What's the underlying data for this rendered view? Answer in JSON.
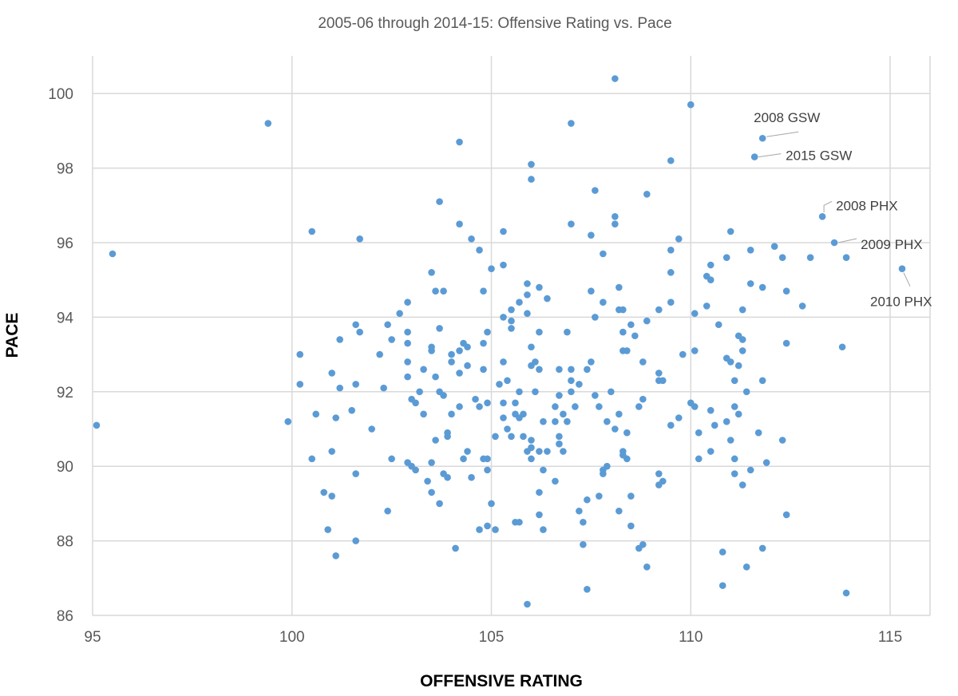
{
  "chart_data": {
    "type": "scatter",
    "title": "2005-06 through 2014-15: Offensive Rating vs. Pace",
    "xlabel": "OFFENSIVE RATING",
    "ylabel": "PACE",
    "xlim": [
      95,
      116
    ],
    "ylim": [
      86,
      101
    ],
    "xticks": [
      "95",
      "100",
      "105",
      "110",
      "115"
    ],
    "yticks": [
      "86",
      "88",
      "90",
      "92",
      "94",
      "96",
      "98",
      "100"
    ],
    "grid": true,
    "color": "#5B9BD5",
    "annotations": [
      {
        "label": "2008 GSW",
        "x": 111.8,
        "y": 98.8
      },
      {
        "label": "2015 GSW",
        "x": 111.6,
        "y": 98.3
      },
      {
        "label": "2008 PHX",
        "x": 113.3,
        "y": 96.7
      },
      {
        "label": "2009 PHX",
        "x": 113.6,
        "y": 96.0
      },
      {
        "label": "2010 PHX",
        "x": 115.3,
        "y": 95.3
      }
    ],
    "points": [
      [
        95.1,
        91.1
      ],
      [
        95.5,
        95.7
      ],
      [
        99.4,
        99.2
      ],
      [
        99.9,
        91.2
      ],
      [
        100.2,
        93.0
      ],
      [
        100.2,
        92.2
      ],
      [
        100.5,
        96.3
      ],
      [
        100.5,
        90.2
      ],
      [
        100.6,
        91.4
      ],
      [
        100.8,
        89.3
      ],
      [
        100.9,
        88.3
      ],
      [
        101.0,
        92.5
      ],
      [
        101.0,
        90.4
      ],
      [
        101.0,
        89.2
      ],
      [
        101.1,
        87.6
      ],
      [
        101.1,
        91.3
      ],
      [
        101.2,
        92.1
      ],
      [
        101.2,
        93.4
      ],
      [
        101.7,
        96.1
      ],
      [
        101.6,
        93.8
      ],
      [
        101.7,
        93.6
      ],
      [
        101.6,
        92.2
      ],
      [
        101.5,
        91.5
      ],
      [
        101.6,
        89.8
      ],
      [
        101.6,
        88.0
      ],
      [
        102.0,
        91.0
      ],
      [
        102.2,
        93.0
      ],
      [
        102.3,
        92.1
      ],
      [
        102.4,
        93.8
      ],
      [
        102.5,
        93.4
      ],
      [
        102.5,
        90.2
      ],
      [
        102.4,
        88.8
      ],
      [
        102.7,
        94.1
      ],
      [
        102.9,
        94.4
      ],
      [
        102.9,
        93.6
      ],
      [
        102.9,
        93.3
      ],
      [
        102.9,
        92.8
      ],
      [
        102.9,
        92.4
      ],
      [
        102.9,
        90.1
      ],
      [
        103.0,
        91.8
      ],
      [
        103.0,
        90.0
      ],
      [
        103.1,
        89.9
      ],
      [
        103.1,
        91.7
      ],
      [
        103.2,
        92.0
      ],
      [
        103.3,
        91.4
      ],
      [
        103.3,
        92.6
      ],
      [
        103.4,
        89.6
      ],
      [
        103.5,
        93.2
      ],
      [
        103.5,
        93.1
      ],
      [
        103.5,
        95.2
      ],
      [
        103.5,
        90.1
      ],
      [
        103.5,
        89.3
      ],
      [
        103.6,
        94.7
      ],
      [
        103.6,
        92.4
      ],
      [
        103.6,
        90.7
      ],
      [
        103.7,
        97.1
      ],
      [
        103.7,
        93.7
      ],
      [
        103.7,
        92.0
      ],
      [
        103.7,
        89.0
      ],
      [
        103.8,
        94.7
      ],
      [
        103.8,
        91.9
      ],
      [
        103.8,
        89.8
      ],
      [
        103.9,
        90.9
      ],
      [
        103.9,
        89.7
      ],
      [
        103.9,
        90.8
      ],
      [
        104.0,
        91.4
      ],
      [
        104.0,
        93.0
      ],
      [
        104.0,
        92.8
      ],
      [
        104.1,
        87.8
      ],
      [
        104.2,
        98.7
      ],
      [
        104.2,
        96.5
      ],
      [
        104.2,
        93.1
      ],
      [
        104.2,
        92.5
      ],
      [
        104.2,
        91.6
      ],
      [
        104.3,
        93.3
      ],
      [
        104.3,
        90.2
      ],
      [
        104.4,
        93.2
      ],
      [
        104.4,
        92.7
      ],
      [
        104.4,
        90.4
      ],
      [
        104.5,
        96.1
      ],
      [
        104.5,
        89.7
      ],
      [
        104.6,
        91.8
      ],
      [
        104.7,
        95.8
      ],
      [
        104.7,
        91.6
      ],
      [
        104.7,
        88.3
      ],
      [
        104.8,
        94.7
      ],
      [
        104.8,
        93.3
      ],
      [
        104.8,
        92.6
      ],
      [
        104.8,
        90.2
      ],
      [
        104.9,
        93.6
      ],
      [
        104.9,
        91.7
      ],
      [
        104.9,
        90.2
      ],
      [
        104.9,
        89.9
      ],
      [
        104.9,
        88.4
      ],
      [
        105.0,
        95.3
      ],
      [
        105.0,
        89.0
      ],
      [
        105.1,
        88.3
      ],
      [
        105.1,
        90.8
      ],
      [
        105.2,
        92.2
      ],
      [
        105.3,
        96.3
      ],
      [
        105.3,
        95.4
      ],
      [
        105.3,
        94.0
      ],
      [
        105.3,
        92.8
      ],
      [
        105.3,
        91.7
      ],
      [
        105.3,
        91.3
      ],
      [
        105.4,
        92.3
      ],
      [
        105.4,
        91.0
      ],
      [
        105.5,
        94.2
      ],
      [
        105.5,
        93.7
      ],
      [
        105.5,
        93.9
      ],
      [
        105.5,
        90.8
      ],
      [
        105.6,
        91.7
      ],
      [
        105.6,
        91.4
      ],
      [
        105.6,
        88.5
      ],
      [
        105.7,
        94.4
      ],
      [
        105.7,
        92.0
      ],
      [
        105.7,
        91.3
      ],
      [
        105.7,
        88.5
      ],
      [
        105.8,
        91.4
      ],
      [
        105.8,
        90.8
      ],
      [
        105.9,
        94.9
      ],
      [
        105.9,
        94.6
      ],
      [
        105.9,
        94.1
      ],
      [
        105.9,
        90.4
      ],
      [
        105.9,
        86.3
      ],
      [
        106.0,
        98.1
      ],
      [
        106.0,
        97.7
      ],
      [
        106.0,
        93.2
      ],
      [
        106.0,
        92.7
      ],
      [
        106.0,
        90.7
      ],
      [
        106.0,
        90.5
      ],
      [
        106.0,
        90.2
      ],
      [
        106.1,
        92.8
      ],
      [
        106.1,
        92.0
      ],
      [
        106.2,
        94.8
      ],
      [
        106.2,
        93.6
      ],
      [
        106.2,
        92.6
      ],
      [
        106.2,
        90.4
      ],
      [
        106.2,
        89.3
      ],
      [
        106.2,
        88.7
      ],
      [
        106.3,
        91.2
      ],
      [
        106.3,
        89.9
      ],
      [
        106.3,
        88.3
      ],
      [
        106.4,
        94.5
      ],
      [
        106.4,
        90.4
      ],
      [
        106.6,
        89.6
      ],
      [
        106.6,
        91.6
      ],
      [
        106.6,
        91.2
      ],
      [
        106.7,
        92.6
      ],
      [
        106.7,
        91.9
      ],
      [
        106.7,
        90.8
      ],
      [
        106.7,
        90.6
      ],
      [
        106.8,
        91.4
      ],
      [
        106.8,
        90.4
      ],
      [
        106.9,
        93.6
      ],
      [
        106.9,
        91.2
      ],
      [
        107.0,
        99.2
      ],
      [
        107.0,
        96.5
      ],
      [
        107.0,
        92.6
      ],
      [
        107.0,
        92.3
      ],
      [
        107.0,
        92.0
      ],
      [
        107.1,
        91.6
      ],
      [
        107.2,
        92.2
      ],
      [
        107.2,
        88.8
      ],
      [
        107.3,
        88.5
      ],
      [
        107.3,
        87.9
      ],
      [
        107.4,
        92.6
      ],
      [
        107.4,
        89.1
      ],
      [
        107.4,
        86.7
      ],
      [
        107.5,
        96.2
      ],
      [
        107.5,
        94.7
      ],
      [
        107.5,
        92.8
      ],
      [
        107.6,
        97.4
      ],
      [
        107.6,
        94.0
      ],
      [
        107.6,
        91.9
      ],
      [
        107.7,
        91.6
      ],
      [
        107.7,
        89.2
      ],
      [
        107.8,
        95.7
      ],
      [
        107.8,
        94.4
      ],
      [
        107.8,
        89.9
      ],
      [
        107.8,
        89.8
      ],
      [
        107.9,
        91.2
      ],
      [
        107.9,
        90.0
      ],
      [
        108.0,
        92.0
      ],
      [
        108.1,
        100.4
      ],
      [
        108.1,
        96.7
      ],
      [
        108.1,
        96.5
      ],
      [
        108.1,
        91.0
      ],
      [
        108.2,
        94.8
      ],
      [
        108.2,
        91.4
      ],
      [
        108.2,
        88.8
      ],
      [
        108.2,
        94.2
      ],
      [
        108.3,
        94.2
      ],
      [
        108.3,
        93.6
      ],
      [
        108.3,
        93.1
      ],
      [
        108.3,
        90.4
      ],
      [
        108.3,
        90.3
      ],
      [
        108.4,
        93.1
      ],
      [
        108.4,
        90.9
      ],
      [
        108.4,
        90.2
      ],
      [
        108.5,
        93.8
      ],
      [
        108.5,
        89.2
      ],
      [
        108.5,
        88.4
      ],
      [
        108.6,
        93.5
      ],
      [
        108.7,
        91.6
      ],
      [
        108.7,
        87.8
      ],
      [
        108.8,
        92.8
      ],
      [
        108.8,
        91.8
      ],
      [
        108.8,
        87.9
      ],
      [
        108.9,
        97.3
      ],
      [
        108.9,
        93.9
      ],
      [
        108.9,
        87.3
      ],
      [
        109.2,
        94.2
      ],
      [
        109.2,
        92.5
      ],
      [
        109.2,
        92.3
      ],
      [
        109.3,
        92.3
      ],
      [
        109.2,
        89.8
      ],
      [
        109.2,
        89.5
      ],
      [
        109.3,
        89.6
      ],
      [
        109.5,
        98.2
      ],
      [
        109.5,
        95.8
      ],
      [
        109.5,
        95.2
      ],
      [
        109.5,
        94.4
      ],
      [
        109.5,
        91.1
      ],
      [
        109.7,
        91.3
      ],
      [
        109.7,
        96.1
      ],
      [
        109.8,
        93.0
      ],
      [
        110.0,
        99.7
      ],
      [
        110.0,
        91.7
      ],
      [
        110.1,
        91.6
      ],
      [
        110.1,
        94.1
      ],
      [
        110.1,
        93.1
      ],
      [
        110.2,
        90.9
      ],
      [
        110.2,
        90.2
      ],
      [
        110.4,
        94.3
      ],
      [
        110.4,
        95.1
      ],
      [
        110.5,
        95.4
      ],
      [
        110.5,
        95.0
      ],
      [
        110.5,
        91.5
      ],
      [
        110.5,
        90.4
      ],
      [
        110.6,
        91.1
      ],
      [
        110.7,
        93.8
      ],
      [
        110.8,
        87.7
      ],
      [
        110.8,
        86.8
      ],
      [
        110.9,
        95.6
      ],
      [
        110.9,
        92.9
      ],
      [
        110.9,
        91.2
      ],
      [
        111.0,
        96.3
      ],
      [
        111.0,
        92.8
      ],
      [
        111.0,
        90.7
      ],
      [
        111.1,
        92.3
      ],
      [
        111.1,
        91.6
      ],
      [
        111.1,
        90.2
      ],
      [
        111.1,
        89.8
      ],
      [
        111.2,
        93.5
      ],
      [
        111.2,
        92.7
      ],
      [
        111.2,
        91.4
      ],
      [
        111.3,
        94.2
      ],
      [
        111.3,
        93.4
      ],
      [
        111.3,
        93.1
      ],
      [
        111.3,
        89.5
      ],
      [
        111.4,
        92.0
      ],
      [
        111.4,
        87.3
      ],
      [
        111.5,
        94.9
      ],
      [
        111.5,
        95.8
      ],
      [
        111.5,
        89.9
      ],
      [
        111.7,
        90.9
      ],
      [
        111.8,
        94.8
      ],
      [
        111.8,
        92.3
      ],
      [
        111.8,
        87.8
      ],
      [
        111.9,
        90.1
      ],
      [
        112.1,
        95.9
      ],
      [
        112.3,
        95.6
      ],
      [
        112.3,
        90.7
      ],
      [
        112.4,
        94.7
      ],
      [
        112.4,
        93.3
      ],
      [
        112.4,
        88.7
      ],
      [
        112.8,
        94.3
      ],
      [
        113.0,
        95.6
      ],
      [
        113.8,
        93.2
      ],
      [
        113.9,
        95.6
      ],
      [
        113.9,
        86.6
      ],
      [
        111.8,
        98.8
      ],
      [
        111.6,
        98.3
      ],
      [
        113.3,
        96.7
      ],
      [
        113.6,
        96.0
      ],
      [
        115.3,
        95.3
      ]
    ]
  }
}
